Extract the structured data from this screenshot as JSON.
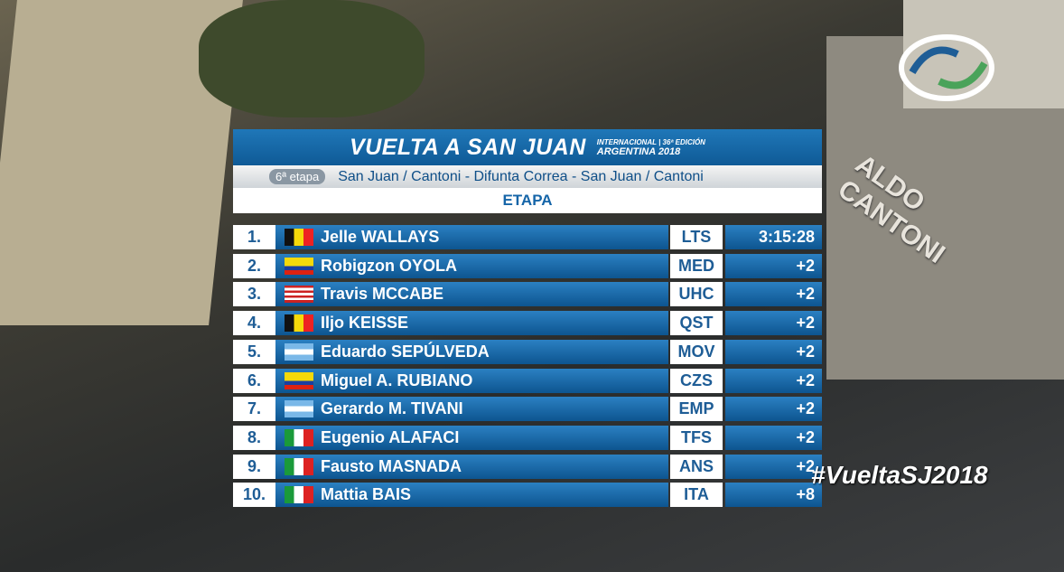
{
  "header": {
    "logo": "VUELTA A SAN JUAN",
    "edition": "INTERNACIONAL | 36ª EDICIÓN",
    "country_year": "ARGENTINA 2018",
    "stage": "6ª etapa",
    "route": "San Juan / Cantoni - Difunta Correa - San Juan / Cantoni",
    "classification": "ETAPA"
  },
  "table": {
    "rows": [
      [
        "1.",
        "Jelle WALLAYS",
        "LTS",
        "3:15:28"
      ],
      [
        "2.",
        "Robigzon OYOLA",
        "MED",
        "+2"
      ],
      [
        "3.",
        "Travis MCCABE",
        "UHC",
        "+2"
      ],
      [
        "4.",
        "Iljo KEISSE",
        "QST",
        "+2"
      ],
      [
        "5.",
        "Eduardo SEPÚLVEDA",
        "MOV",
        "+2"
      ],
      [
        "6.",
        "Miguel A. RUBIANO",
        "CZS",
        "+2"
      ],
      [
        "7.",
        "Gerardo M. TIVANI",
        "EMP",
        "+2"
      ],
      [
        "8.",
        "Eugenio ALAFACI",
        "TFS",
        "+2"
      ],
      [
        "9.",
        "Fausto MASNADA",
        "ANS",
        "+2"
      ],
      [
        "10.",
        "Mattia BAIS",
        "ITA",
        "+8"
      ]
    ]
  },
  "hashtag": "#VueltaSJ2018",
  "building_sign": "ALDO CANTONI"
}
